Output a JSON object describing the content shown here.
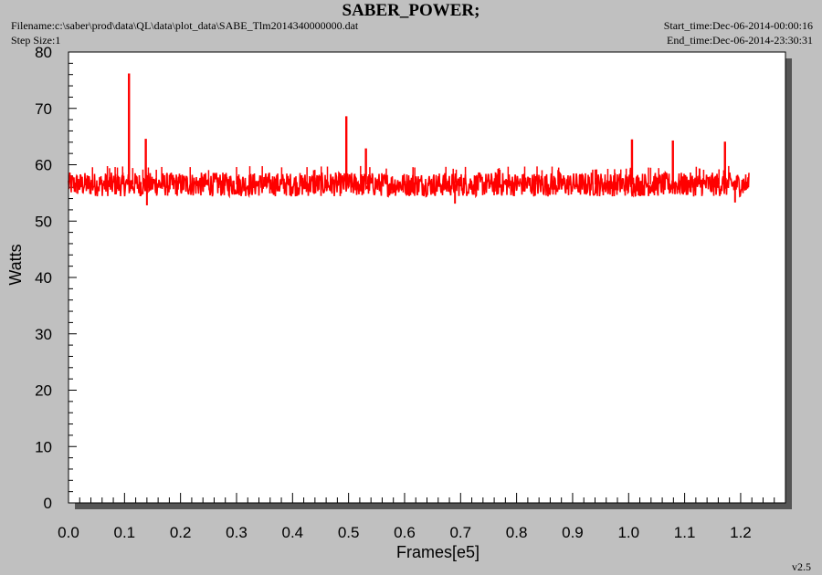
{
  "header": {
    "title": "SABER_POWER;",
    "filename": "Filename:c:\\saber\\prod\\data\\QL\\data\\plot_data\\SABE_Tlm2014340000000.dat",
    "step_size": "Step Size:1",
    "start_time": "Start_time:Dec-06-2014-00:00:16",
    "end_time": "End_time:Dec-06-2014-23:30:31",
    "version": "v2.5"
  },
  "colors": {
    "background": "#c0c0c0",
    "plot_area": "#ffffff",
    "shadow": "#555555",
    "series": "#ff0000"
  },
  "chart_data": {
    "type": "line",
    "title": "SABER_POWER;",
    "xlabel": "Frames[e5]",
    "ylabel": "Watts",
    "xlim": [
      0,
      1.28
    ],
    "ylim": [
      0,
      80
    ],
    "x_ticks": [
      "0.0",
      "0.1",
      "0.2",
      "0.3",
      "0.4",
      "0.5",
      "0.6",
      "0.7",
      "0.8",
      "0.9",
      "1.0",
      "1.1",
      "1.2"
    ],
    "y_ticks": [
      "0",
      "10",
      "20",
      "30",
      "40",
      "50",
      "60",
      "70",
      "80"
    ],
    "grid": false,
    "legend": "none",
    "series": [
      {
        "color": "#ff0000",
        "x_range": [
          0.0,
          1.215
        ],
        "band_mean": 56.5,
        "band_low": 54.0,
        "band_high": 59.0,
        "spikes": [
          {
            "x": 0.108,
            "y": 76.2
          },
          {
            "x": 0.138,
            "y": 64.6
          },
          {
            "x": 0.496,
            "y": 68.6
          },
          {
            "x": 0.531,
            "y": 62.9
          },
          {
            "x": 1.006,
            "y": 64.5
          },
          {
            "x": 1.079,
            "y": 64.3
          },
          {
            "x": 1.172,
            "y": 64.1
          }
        ],
        "dips": [
          {
            "x": 0.14,
            "y": 52.8
          },
          {
            "x": 0.69,
            "y": 53.1
          },
          {
            "x": 1.19,
            "y": 53.3
          }
        ]
      }
    ]
  }
}
